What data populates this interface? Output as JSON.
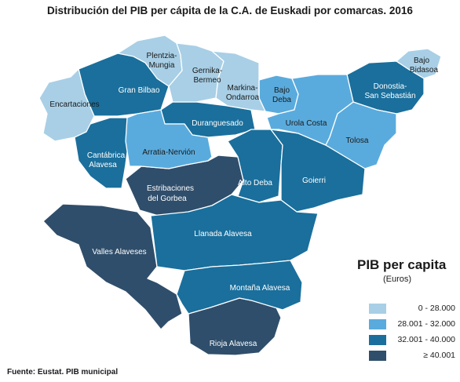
{
  "title": "Distribución del PIB per cápita de la C.A. de Euskadi por comarcas. 2016",
  "colors": {
    "class1": "#a8cfe6",
    "class2": "#5aabdd",
    "class3": "#1a6f9c",
    "class4": "#2f4e6b"
  },
  "regions": {
    "plentzia": "Plentzia-Mungia",
    "plentzia_l1": "Plentzia-",
    "plentzia_l2": "Mungia",
    "gernika_l1": "Gernika-",
    "gernika_l2": "Bermeo",
    "markina_l1": "Markina-",
    "markina_l2": "Ondarroa",
    "bidasoa_l1": "Bajo",
    "bidasoa_l2": "Bidasoa",
    "donostia_l1": "Donostia-",
    "donostia_l2": "San Sebastián",
    "granbilbao": "Gran Bilbao",
    "bajodeba_l1": "Bajo",
    "bajodeba_l2": "Deba",
    "encartaciones": "Encartaciones",
    "duranguesado": "Duranguesado",
    "urolacosta": "Urola Costa",
    "tolosa": "Tolosa",
    "cantabrica_l1": "Cantábrica",
    "cantabrica_l2": "Alavesa",
    "arratia": "Arratia-Nervión",
    "altodeba": "Alto Deba",
    "goierri": "Goierri",
    "estribaciones_l1": "Estribaciones",
    "estribaciones_l2": "del Gorbea",
    "llanada": "Llanada Alavesa",
    "valles": "Valles Alaveses",
    "montana": "Montaña Alavesa",
    "rioja": "Rioja Alavesa"
  },
  "legend": {
    "title": "PIB per capita",
    "subtitle": "(Euros)",
    "items": [
      {
        "label": "0  - 28.000",
        "class": "class1"
      },
      {
        "label": "28.001 - 32.000",
        "class": "class2"
      },
      {
        "label": "32.001 - 40.000",
        "class": "class3"
      },
      {
        "label": "≥ 40.001",
        "class": "class4"
      }
    ]
  },
  "source": "Fuente: Eustat. PIB municipal"
}
